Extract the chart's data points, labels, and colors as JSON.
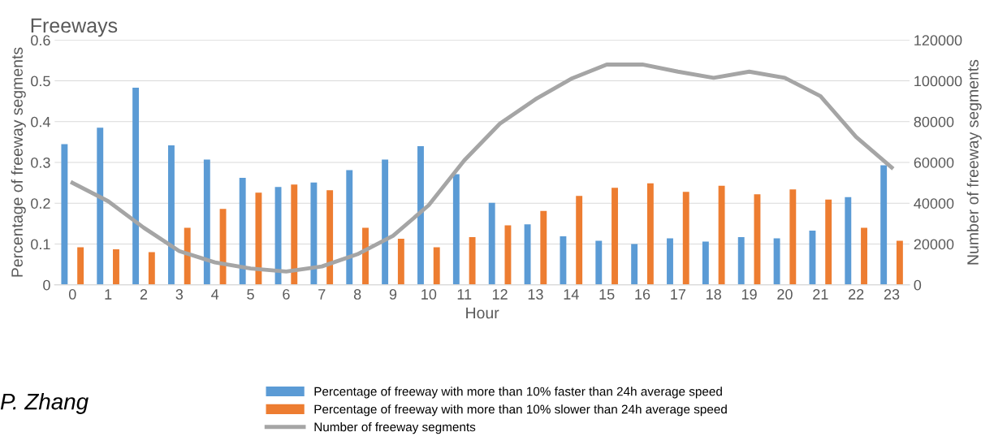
{
  "chart_data": {
    "type": "bar",
    "title": "Freeways",
    "xlabel": "Hour",
    "ylabel": "Percentage of freeway segments",
    "y2label": "Number of freeway segments",
    "categories": [
      "0",
      "1",
      "2",
      "3",
      "4",
      "5",
      "6",
      "7",
      "8",
      "9",
      "10",
      "11",
      "12",
      "13",
      "14",
      "15",
      "16",
      "17",
      "18",
      "19",
      "20",
      "21",
      "22",
      "23"
    ],
    "series": [
      {
        "name": "Percentage of freeway with more than 10% faster than 24h average speed",
        "color": "#5b9bd5",
        "values": [
          0.345,
          0.385,
          0.483,
          0.342,
          0.307,
          0.262,
          0.24,
          0.251,
          0.281,
          0.307,
          0.34,
          0.271,
          0.201,
          0.148,
          0.119,
          0.108,
          0.1,
          0.114,
          0.106,
          0.117,
          0.114,
          0.133,
          0.215,
          0.293
        ]
      },
      {
        "name": "Percentage of freeway with more than 10% slower than 24h average speed",
        "color": "#ed7d31",
        "values": [
          0.092,
          0.087,
          0.08,
          0.14,
          0.186,
          0.226,
          0.246,
          0.232,
          0.14,
          0.113,
          0.092,
          0.117,
          0.146,
          0.181,
          0.218,
          0.238,
          0.249,
          0.228,
          0.243,
          0.222,
          0.234,
          0.209,
          0.14,
          0.108
        ]
      },
      {
        "name": "Number of freeway segments",
        "type": "line",
        "axis": "y2",
        "color": "#a5a5a5",
        "values": [
          50000,
          41000,
          28000,
          16500,
          11000,
          8000,
          6500,
          9000,
          15000,
          24000,
          39000,
          61000,
          79000,
          91000,
          101000,
          108000,
          108000,
          104500,
          101500,
          104500,
          101500,
          92500,
          72500,
          57500
        ]
      }
    ],
    "ylim": [
      0,
      0.6
    ],
    "yticks": [
      {
        "value": 0,
        "label": "0"
      },
      0.1,
      0.2,
      0.3,
      0.4,
      0.5,
      0.6
    ],
    "y2lim": [
      0,
      120000
    ],
    "y2ticks": [
      0,
      20000,
      40000,
      60000,
      80000,
      100000,
      120000
    ],
    "grid": "y",
    "legend": "bottom",
    "annotations": [
      "P. Zhang"
    ]
  }
}
